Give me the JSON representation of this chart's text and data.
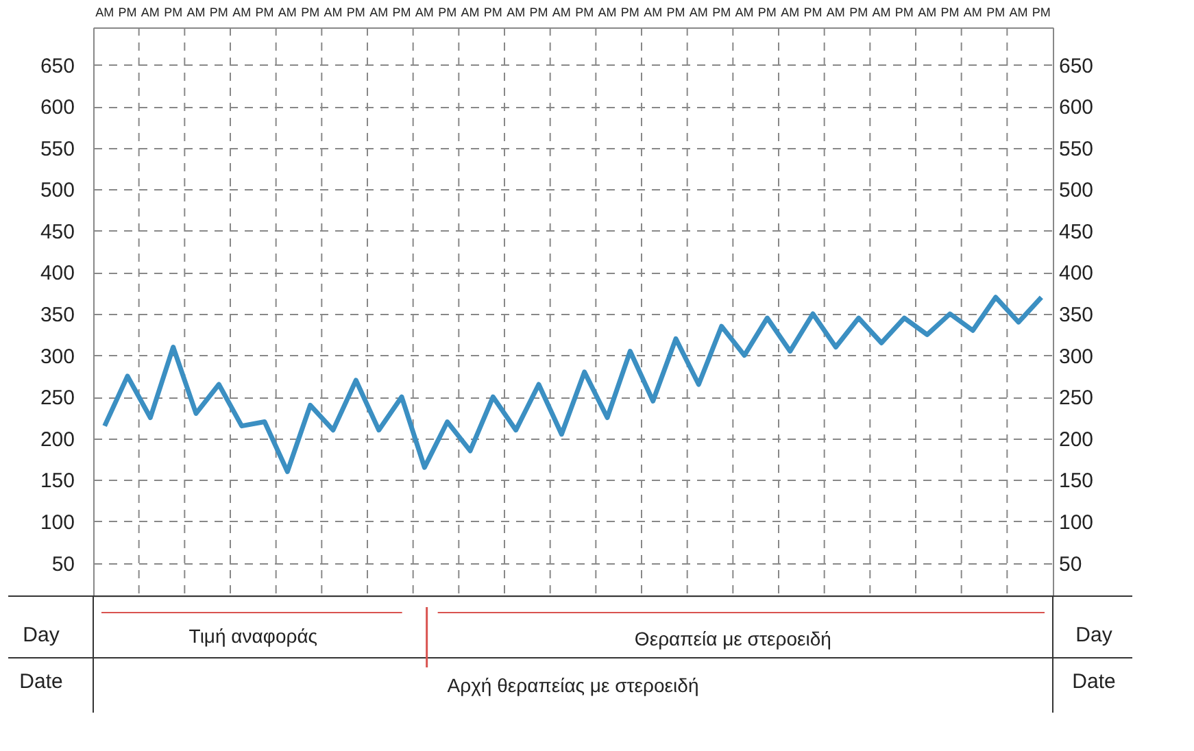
{
  "chart_data": {
    "type": "line",
    "categories": [
      "AM",
      "PM",
      "AM",
      "PM",
      "AM",
      "PM",
      "AM",
      "PM",
      "AM",
      "PM",
      "AM",
      "PM",
      "AM",
      "PM",
      "AM",
      "PM",
      "AM",
      "PM",
      "AM",
      "PM",
      "AM",
      "PM",
      "AM",
      "PM",
      "AM",
      "PM",
      "AM",
      "PM",
      "AM",
      "PM",
      "AM",
      "PM",
      "AM",
      "PM",
      "AM",
      "PM",
      "AM",
      "PM",
      "AM",
      "PM",
      "AM",
      "PM"
    ],
    "series": [
      {
        "color": "#3b8fc2",
        "values": [
          215,
          275,
          225,
          310,
          230,
          265,
          215,
          220,
          160,
          240,
          210,
          270,
          210,
          250,
          165,
          220,
          185,
          250,
          210,
          265,
          205,
          280,
          225,
          305,
          245,
          320,
          265,
          335,
          300,
          345,
          305,
          350,
          310,
          345,
          315,
          345,
          325,
          350,
          330,
          370,
          340,
          370
        ]
      }
    ],
    "ylim": [
      10,
      695
    ],
    "yticks": [
      50,
      100,
      150,
      200,
      250,
      300,
      350,
      400,
      450,
      500,
      550,
      600,
      650
    ],
    "y2lim": [
      10,
      695
    ],
    "y2ticks": [
      50,
      100,
      150,
      200,
      250,
      300,
      350,
      400,
      450,
      500,
      550,
      600,
      650
    ],
    "grid": true,
    "line_style": "solid",
    "marker": "none",
    "annotations": [
      "Day",
      "Date",
      "Τιμή αναφοράς",
      "Θεραπεία με στεροειδή",
      "Αρχή θεραπείας με στεροειδή",
      "Day",
      "Date"
    ]
  }
}
